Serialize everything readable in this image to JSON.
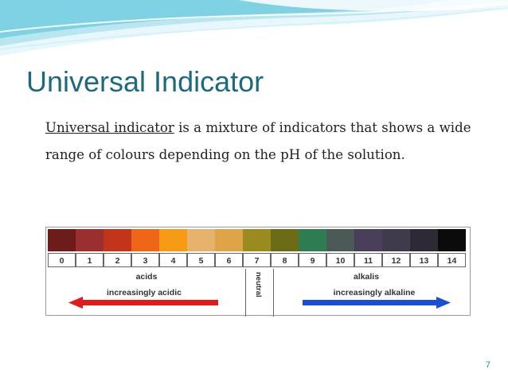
{
  "slide": {
    "title": "Universal Indicator",
    "body": {
      "term": "Universal indicator",
      "rest": " is a mixture of indicators that shows a wide range of colours depending on the pH of the solution."
    },
    "page_number": "7"
  },
  "ph_scale": {
    "values": [
      "0",
      "1",
      "2",
      "3",
      "4",
      "5",
      "6",
      "7",
      "8",
      "9",
      "10",
      "11",
      "12",
      "13",
      "14"
    ],
    "colors": [
      "#6e1b1b",
      "#9b2e2e",
      "#c3351b",
      "#ee6518",
      "#f79a14",
      "#e6b36c",
      "#dca447",
      "#9a8b1e",
      "#6d6c16",
      "#2e7d52",
      "#4c5a57",
      "#4a3f5b",
      "#3f3a4c",
      "#2d2a35",
      "#0b0b0b"
    ],
    "acid_label": "acids",
    "acid_sublabel": "increasingly acidic",
    "neutral_label": "neutral",
    "alkali_label": "alkalis",
    "alkali_sublabel": "increasingly alkaline",
    "acid_arrow_color": "#e11b1b",
    "alkali_arrow_color": "#1c4fd8"
  },
  "theme": {
    "title_color": "#1c6a80",
    "wave_colors": [
      "#7fd1e4",
      "#b9e6f0",
      "#e8f7fb"
    ]
  }
}
